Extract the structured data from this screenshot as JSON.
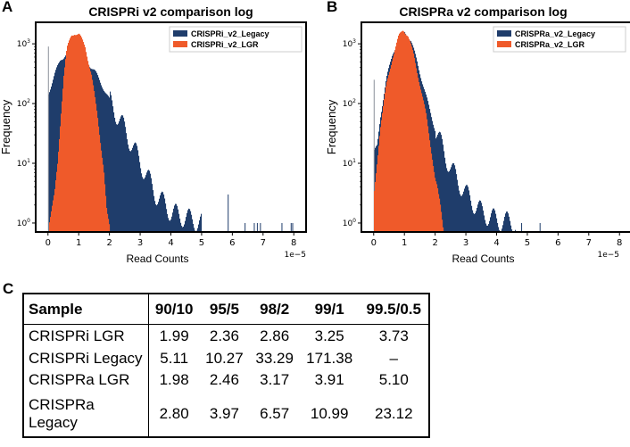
{
  "panels": {
    "a": "A",
    "b": "B",
    "c": "C"
  },
  "colors": {
    "legacy": "#1f3d6b",
    "lgr": "#ef5a2a"
  },
  "chart_data": [
    {
      "type": "bar",
      "subtype": "overlaid histogram",
      "title": "CRISPRi v2 comparison log",
      "xlabel": "Read Counts",
      "x_offset_label": "1e−5",
      "ylabel": "Frequency",
      "xlim": [
        -0.4,
        8.4
      ],
      "ylim_log10": [
        -0.15,
        3.36
      ],
      "yscale": "log",
      "xticks": [
        "0",
        "1",
        "2",
        "3",
        "4",
        "5",
        "6",
        "7",
        "8"
      ],
      "yticks": [
        {
          "exp": 0,
          "label": "10",
          "sup": "0"
        },
        {
          "exp": 1,
          "label": "10",
          "sup": "1"
        },
        {
          "exp": 2,
          "label": "10",
          "sup": "2"
        },
        {
          "exp": 3,
          "label": "10",
          "sup": "3"
        }
      ],
      "legend": "top-right",
      "series": [
        {
          "name": "CRISPRi_v2_Legacy",
          "color_key": "legacy",
          "envelope": [
            [
              0.0,
              150
            ],
            [
              0.2,
              300
            ],
            [
              0.4,
              550
            ],
            [
              0.6,
              700
            ],
            [
              0.8,
              750
            ],
            [
              1.0,
              700
            ],
            [
              1.2,
              550
            ],
            [
              1.5,
              350
            ],
            [
              1.8,
              180
            ],
            [
              2.0,
              110
            ],
            [
              2.5,
              35
            ],
            [
              3.0,
              10
            ],
            [
              3.5,
              3
            ],
            [
              4.0,
              1.5
            ],
            [
              4.5,
              1.2
            ],
            [
              5.0,
              1
            ]
          ],
          "sparse": [
            [
              5.85,
              3
            ],
            [
              6.4,
              1
            ],
            [
              6.7,
              1
            ],
            [
              6.8,
              1
            ],
            [
              6.9,
              1
            ],
            [
              7.6,
              1
            ],
            [
              7.9,
              1
            ],
            [
              7.95,
              1
            ],
            [
              0.0,
              900
            ]
          ]
        },
        {
          "name": "CRISPRi_v2_LGR",
          "color_key": "lgr",
          "envelope": [
            [
              0.02,
              1
            ],
            [
              0.2,
              3
            ],
            [
              0.3,
              10
            ],
            [
              0.4,
              60
            ],
            [
              0.5,
              300
            ],
            [
              0.6,
              800
            ],
            [
              0.75,
              1400
            ],
            [
              0.85,
              1550
            ],
            [
              1.0,
              1400
            ],
            [
              1.2,
              900
            ],
            [
              1.4,
              300
            ],
            [
              1.6,
              60
            ],
            [
              1.8,
              8
            ],
            [
              1.9,
              1.5
            ],
            [
              2.0,
              0.8
            ]
          ],
          "sparse": []
        }
      ]
    },
    {
      "type": "bar",
      "subtype": "overlaid histogram",
      "title": "CRISPRa v2 comparison log",
      "xlabel": "Read Counts",
      "x_offset_label": "1e−5",
      "ylabel": "Frequency",
      "xlim": [
        -0.4,
        8.4
      ],
      "ylim_log10": [
        -0.15,
        3.36
      ],
      "yscale": "log",
      "xticks": [
        "0",
        "1",
        "2",
        "3",
        "4",
        "5",
        "6",
        "7",
        "8"
      ],
      "yticks": [
        {
          "exp": 0,
          "label": "10",
          "sup": "0"
        },
        {
          "exp": 1,
          "label": "10",
          "sup": "1"
        },
        {
          "exp": 2,
          "label": "10",
          "sup": "2"
        },
        {
          "exp": 3,
          "label": "10",
          "sup": "3"
        }
      ],
      "legend": "top-right",
      "series": [
        {
          "name": "CRISPRa_v2_Legacy",
          "color_key": "legacy",
          "envelope": [
            [
              0.0,
              15
            ],
            [
              0.1,
              20
            ],
            [
              0.2,
              60
            ],
            [
              0.4,
              250
            ],
            [
              0.6,
              700
            ],
            [
              0.8,
              1200
            ],
            [
              1.0,
              1600
            ],
            [
              1.2,
              1100
            ],
            [
              1.4,
              500
            ],
            [
              1.6,
              200
            ],
            [
              1.8,
              80
            ],
            [
              2.0,
              35
            ],
            [
              2.5,
              8
            ],
            [
              3.0,
              3
            ],
            [
              3.5,
              1.5
            ],
            [
              4.0,
              1.1
            ],
            [
              4.6,
              1
            ]
          ],
          "sparse": [
            [
              0.0,
              250
            ],
            [
              4.8,
              1
            ],
            [
              5.4,
              1
            ]
          ]
        },
        {
          "name": "CRISPRa_v2_LGR",
          "color_key": "lgr",
          "envelope": [
            [
              0.0,
              3
            ],
            [
              0.2,
              40
            ],
            [
              0.4,
              200
            ],
            [
              0.6,
              600
            ],
            [
              0.8,
              1300
            ],
            [
              0.95,
              1750
            ],
            [
              1.1,
              1400
            ],
            [
              1.3,
              600
            ],
            [
              1.5,
              200
            ],
            [
              1.7,
              60
            ],
            [
              1.9,
              12
            ],
            [
              2.1,
              2
            ],
            [
              2.3,
              0.8
            ]
          ],
          "sparse": []
        }
      ]
    }
  ],
  "table": {
    "headers": [
      "Sample",
      "90/10",
      "95/5",
      "98/2",
      "99/1",
      "99.5/0.5"
    ],
    "rows": [
      [
        "CRISPRi LGR",
        "1.99",
        "2.36",
        "2.86",
        "3.25",
        "3.73"
      ],
      [
        "CRISPRi Legacy",
        "5.11",
        "10.27",
        "33.29",
        "171.38",
        "–"
      ],
      [
        "CRISPRa LGR",
        "1.98",
        "2.46",
        "3.17",
        "3.91",
        "5.10"
      ],
      [
        "CRISPRa Legacy",
        "2.80",
        "3.97",
        "6.57",
        "10.99",
        "23.12"
      ]
    ]
  }
}
